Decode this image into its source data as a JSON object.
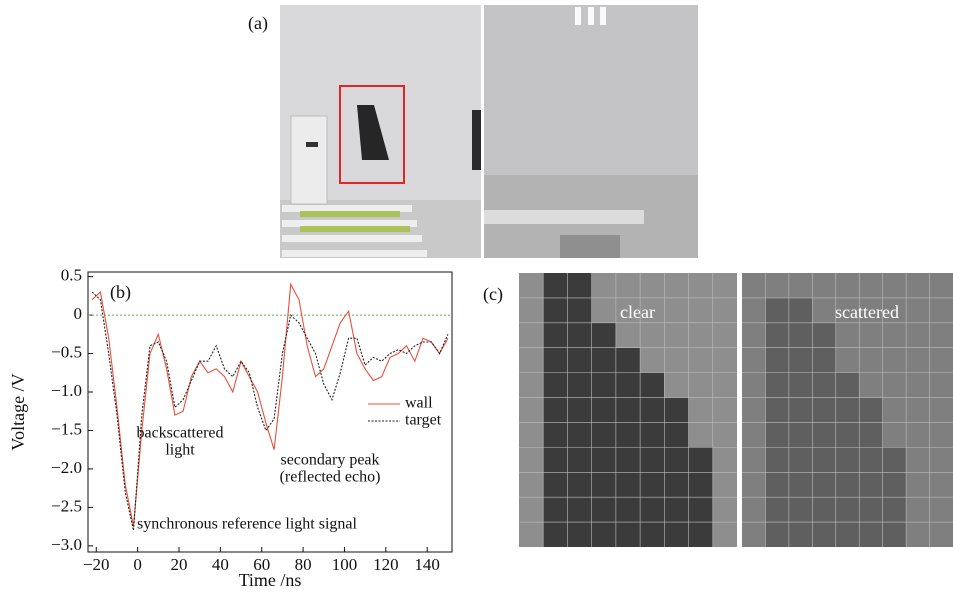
{
  "panels": {
    "a_label": "(a)",
    "c_label": "(c)",
    "c_left": "clear",
    "c_right": "scattered"
  },
  "chart_data": {
    "type": "line",
    "panel_label": "(b)",
    "x_label": "Time /ns",
    "y_label": "Voltage /V",
    "x": [
      -22,
      -18,
      -14,
      -10,
      -6,
      -2,
      2,
      6,
      10,
      14,
      18,
      22,
      26,
      30,
      34,
      38,
      42,
      46,
      50,
      54,
      58,
      62,
      66,
      70,
      74,
      78,
      82,
      86,
      90,
      94,
      98,
      102,
      106,
      110,
      114,
      118,
      122,
      126,
      130,
      134,
      138,
      142,
      146,
      150
    ],
    "series": [
      {
        "name": "wall",
        "color": "#e8503a",
        "dash": false,
        "values": [
          0.2,
          0.3,
          -0.3,
          -1.2,
          -2.2,
          -2.75,
          -1.5,
          -0.5,
          -0.25,
          -0.7,
          -1.3,
          -1.25,
          -0.8,
          -0.6,
          -0.75,
          -0.7,
          -0.8,
          -1.0,
          -0.6,
          -0.8,
          -1.0,
          -1.4,
          -1.75,
          -0.8,
          0.4,
          0.2,
          -0.4,
          -0.8,
          -0.7,
          -0.4,
          -0.1,
          0.05,
          -0.5,
          -0.7,
          -0.85,
          -0.8,
          -0.55,
          -0.5,
          -0.4,
          -0.6,
          -0.3,
          -0.35,
          -0.5,
          -0.3
        ]
      },
      {
        "name": "target",
        "color": "#222222",
        "dash": true,
        "values": [
          0.3,
          0.2,
          -0.5,
          -1.3,
          -2.3,
          -2.8,
          -1.3,
          -0.4,
          -0.35,
          -0.6,
          -1.2,
          -1.1,
          -0.85,
          -0.6,
          -0.6,
          -0.4,
          -0.7,
          -0.8,
          -0.6,
          -0.75,
          -1.2,
          -1.5,
          -1.35,
          -0.5,
          0.0,
          -0.1,
          -0.3,
          -0.5,
          -0.9,
          -1.1,
          -0.75,
          -0.3,
          -0.3,
          -0.65,
          -0.55,
          -0.6,
          -0.5,
          -0.45,
          -0.5,
          -0.4,
          -0.35,
          -0.35,
          -0.5,
          -0.25
        ]
      }
    ],
    "hline": 0,
    "hline_color": "#5cb85c",
    "annotations": [
      "backscattered",
      "light",
      "secondary peak",
      "(reflected echo)",
      "synchronous reference light signal"
    ],
    "xlim": [
      -24,
      152
    ],
    "ylim": [
      -3.08,
      0.56
    ],
    "xticks": [
      {
        "value": -20,
        "label": "−20"
      },
      0,
      20,
      40,
      60,
      80,
      100,
      120,
      140
    ],
    "yticks": [
      0.5,
      0,
      {
        "value": -0.5,
        "label": "−0.5"
      },
      {
        "value": -1.0,
        "label": "−1.0"
      },
      {
        "value": -1.5,
        "label": "−1.5"
      },
      {
        "value": -2.0,
        "label": "−2.0"
      },
      {
        "value": -2.5,
        "label": "−2.5"
      },
      {
        "value": -3.0,
        "label": "−3.0"
      }
    ],
    "legend": "right"
  }
}
